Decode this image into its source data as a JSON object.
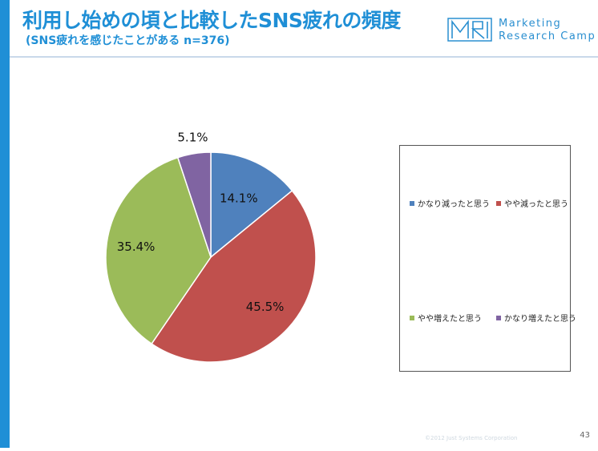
{
  "slide": {
    "title": "利用し始めの頃と比較したSNS疲れの頻度",
    "subtitle": "(SNS疲れを感じたことがある n=376)",
    "page_number": "43",
    "copyright": "©2012 Just Systems Corporation"
  },
  "logo": {
    "mark_text": "MRC",
    "line1": "Marketing",
    "line2": "Research Camp"
  },
  "colors": {
    "accent": "#1f8fd6"
  },
  "chart_data": {
    "type": "pie",
    "title": "",
    "categories": [
      "かなり減ったと思う",
      "やや減ったと思う",
      "やや増えたと思う",
      "かなり増えたと思う"
    ],
    "values": [
      14.1,
      45.5,
      35.4,
      5.1
    ],
    "value_labels": [
      "14.1%",
      "45.5%",
      "35.4%",
      "5.1%"
    ],
    "colors": [
      "#4f81bd",
      "#c0504d",
      "#9bbb59",
      "#8064a2"
    ],
    "start_angle_deg": 0,
    "direction": "clockwise",
    "legend_position": "right"
  }
}
